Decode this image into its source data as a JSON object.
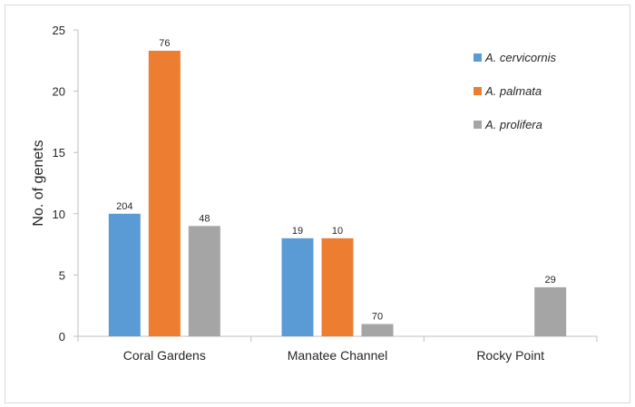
{
  "chart_data": {
    "type": "bar",
    "categories": [
      "Coral Gardens",
      "Manatee Channel",
      "Rocky Point"
    ],
    "series": [
      {
        "name": "A. cervicornis",
        "color": "#5b9bd5",
        "values": [
          10,
          8,
          null
        ],
        "labels": [
          "204",
          "19",
          ""
        ]
      },
      {
        "name": "A. palmata",
        "color": "#ed7d31",
        "values": [
          23.3,
          8,
          null
        ],
        "labels": [
          "76",
          "10",
          ""
        ]
      },
      {
        "name": "A. prolifera",
        "color": "#a5a5a5",
        "values": [
          9,
          1,
          4
        ],
        "labels": [
          "48",
          "70",
          "29"
        ]
      }
    ],
    "ylabel": "No. of genets",
    "xlabel": "",
    "ylim": [
      0,
      25
    ],
    "yticks": [
      0,
      5,
      10,
      15,
      20,
      25
    ],
    "grid": false,
    "legend_position": "top-right"
  }
}
